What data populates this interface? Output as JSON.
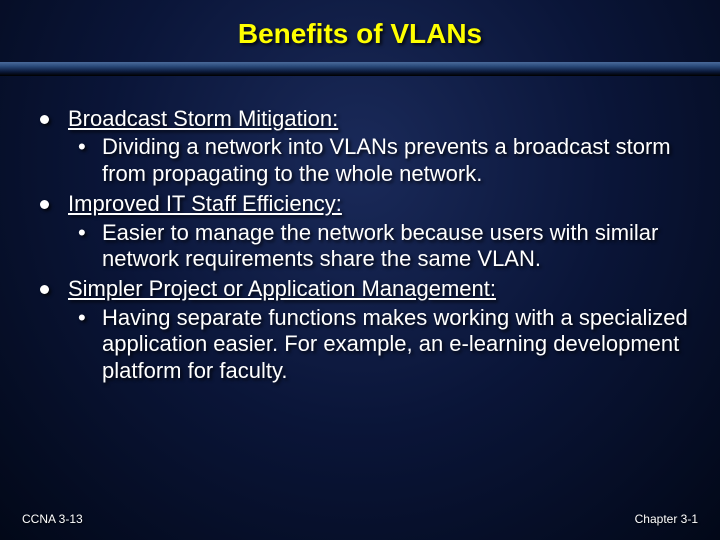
{
  "slide": {
    "title": "Benefits of VLANs",
    "title_color": "#ffff00",
    "body_color": "#ffffff",
    "title_fontsize": 28,
    "body_fontsize": 22,
    "footer_fontsize": 12,
    "background_gradient": [
      "#1a2a5a",
      "#0a1538",
      "#020818"
    ],
    "items": [
      {
        "heading": "Broadcast Storm Mitigation:",
        "sub": "Dividing a network into VLANs prevents a broadcast storm from propagating to the whole network."
      },
      {
        "heading": "Improved IT Staff Efficiency:",
        "sub": "Easier to manage the network because users with similar network requirements share the same VLAN."
      },
      {
        "heading": "Simpler Project or Application Management:",
        "sub": "Having separate functions makes working with a specialized application easier.  For example, an e-learning development platform for faculty."
      }
    ],
    "footer_left": "CCNA 3-13",
    "footer_right": "Chapter 3-1"
  }
}
